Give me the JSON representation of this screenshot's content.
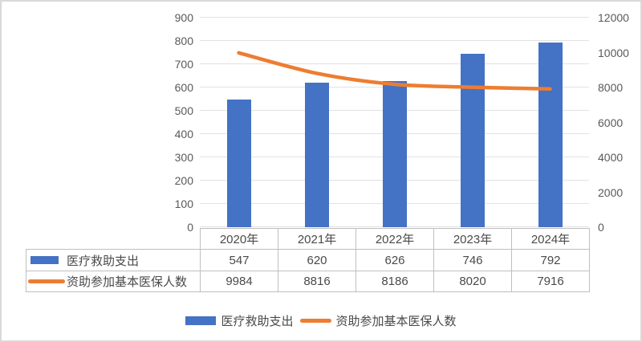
{
  "chart_data": {
    "type": "combo_bar_line",
    "title": "",
    "categories": [
      "2020年",
      "2021年",
      "2022年",
      "2023年",
      "2024年"
    ],
    "series": [
      {
        "name": "医疗救助支出",
        "type": "bar",
        "axis": "left",
        "color": "#4472C4",
        "values": [
          547,
          620,
          626,
          746,
          792
        ]
      },
      {
        "name": "资助参加基本医保人数",
        "type": "line",
        "axis": "right",
        "color": "#ED7D31",
        "values": [
          9984,
          8816,
          8186,
          8020,
          7916
        ]
      }
    ],
    "left_axis": {
      "min": 0,
      "max": 900,
      "step": 100,
      "tick_labels": [
        "0",
        "100",
        "200",
        "300",
        "400",
        "500",
        "600",
        "700",
        "800",
        "900"
      ]
    },
    "right_axis": {
      "min": 0,
      "max": 12000,
      "step": 2000,
      "tick_labels": [
        "0",
        "2000",
        "4000",
        "6000",
        "8000",
        "10000",
        "12000"
      ]
    },
    "gridlines": true,
    "legend_position": "bottom"
  },
  "data_table": {
    "column_headers": [
      "2020年",
      "2021年",
      "2022年",
      "2023年",
      "2024年"
    ],
    "rows": [
      {
        "label": "医疗救助支出",
        "marker": "bar-swatch",
        "values": [
          "547",
          "620",
          "626",
          "746",
          "792"
        ]
      },
      {
        "label": "资助参加基本医保人数",
        "marker": "line-swatch",
        "values": [
          "9984",
          "8816",
          "8186",
          "8020",
          "7916"
        ]
      }
    ]
  },
  "legend": {
    "items": [
      {
        "label": "医疗救助支出",
        "marker": "bar-swatch"
      },
      {
        "label": "资助参加基本医保人数",
        "marker": "line-swatch"
      }
    ]
  },
  "colors": {
    "bar": "#4472C4",
    "line": "#ED7D31",
    "gridline": "#e2e2e2",
    "table_border": "#bfbfbf",
    "axis_text": "#595959",
    "frame_border": "#d9d9d9"
  }
}
